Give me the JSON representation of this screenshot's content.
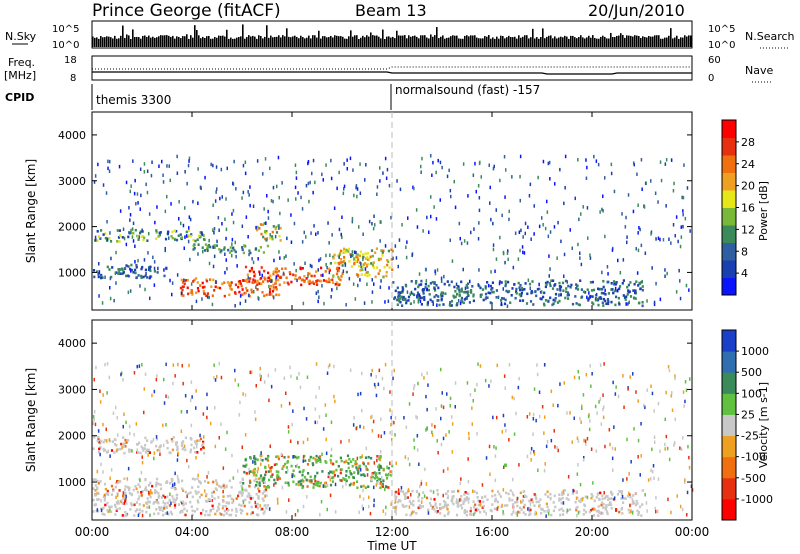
{
  "header": {
    "station": "Prince George (fitACF)",
    "beam": "Beam 13",
    "date": "20/Jun/2010"
  },
  "top_panels": {
    "nsky_label": "N.Sky",
    "nsky_ticks": [
      "10^5",
      "10^0"
    ],
    "nsearch_label": "N.Search",
    "nsearch_ticks": [
      "10^5",
      "10^0"
    ],
    "freq_label": "Freq.",
    "freq_unit": "[MHz]",
    "freq_ticks": [
      "18",
      "8"
    ],
    "nave_label": "Nave",
    "nave_ticks": [
      "60",
      "0"
    ],
    "cpid_label": "CPID",
    "cpid_segments": [
      {
        "start_hour": 0,
        "label": "themis 3300"
      },
      {
        "start_hour": 12,
        "label": "normalsound (fast) -157"
      }
    ]
  },
  "chart_data": [
    {
      "type": "heatmap",
      "title": "",
      "xlabel": "Time UT",
      "ylabel": "Slant Range [km]",
      "x_ticks": [
        "00:00",
        "04:00",
        "08:00",
        "12:00",
        "16:00",
        "20:00",
        "00:00"
      ],
      "x_range_hours": [
        0,
        24
      ],
      "ylim": [
        180,
        4500
      ],
      "y_ticks": [
        1000,
        2000,
        3000,
        4000
      ],
      "colorbar": {
        "label": "Power [dB]",
        "ticks": [
          "4",
          "8",
          "12",
          "16",
          "20",
          "24",
          "28"
        ],
        "colors": [
          "#0a14ff",
          "#1a3fb0",
          "#2f5fa0",
          "#3b8a5a",
          "#7ab83a",
          "#e6e619",
          "#f0a020",
          "#f07010",
          "#e63010",
          "#ff0000"
        ]
      },
      "regions": [
        {
          "t0": 0.0,
          "t1": 4.5,
          "r0": 1700,
          "r1": 1950,
          "level": "mid-high"
        },
        {
          "t0": 4.0,
          "t1": 7.0,
          "r0": 1450,
          "r1": 1650,
          "level": "mid"
        },
        {
          "t0": 6.5,
          "t1": 7.5,
          "r0": 1700,
          "r1": 2100,
          "level": "high"
        },
        {
          "t0": 0.0,
          "t1": 3.0,
          "r0": 900,
          "r1": 1200,
          "level": "low-mid"
        },
        {
          "t0": 3.5,
          "t1": 7.5,
          "r0": 500,
          "r1": 900,
          "level": "very-high"
        },
        {
          "t0": 6.0,
          "t1": 10.0,
          "r0": 750,
          "r1": 1150,
          "level": "very-high"
        },
        {
          "t0": 9.5,
          "t1": 12.0,
          "r0": 900,
          "r1": 1550,
          "level": "high"
        },
        {
          "t0": 12.0,
          "t1": 22.0,
          "r0": 300,
          "r1": 850,
          "level": "low-mid"
        }
      ]
    },
    {
      "type": "heatmap",
      "title": "",
      "xlabel": "Time UT",
      "ylabel": "Slant Range [km]",
      "x_ticks": [
        "00:00",
        "04:00",
        "08:00",
        "12:00",
        "16:00",
        "20:00",
        "00:00"
      ],
      "x_range_hours": [
        0,
        24
      ],
      "ylim": [
        180,
        4500
      ],
      "y_ticks": [
        1000,
        2000,
        3000,
        4000
      ],
      "colorbar": {
        "label": "Velocity [m s-1]",
        "ticks": [
          "1000",
          "500",
          "100",
          "25",
          "-25",
          "-100",
          "-500",
          "-1000"
        ],
        "colors": [
          "#1a3fc8",
          "#2f6fb0",
          "#3b8a5a",
          "#60c040",
          "#c8c8c8",
          "#f0a020",
          "#f07010",
          "#e63010",
          "#ff0000"
        ]
      },
      "regions": [
        {
          "t0": 0.0,
          "t1": 4.5,
          "r0": 1650,
          "r1": 2000,
          "level": "ground-scatter"
        },
        {
          "t0": 0.0,
          "t1": 7.0,
          "r0": 300,
          "r1": 1100,
          "level": "ground-scatter"
        },
        {
          "t0": 6.0,
          "t1": 12.0,
          "r0": 900,
          "r1": 1600,
          "level": "positive-100"
        },
        {
          "t0": 12.0,
          "t1": 22.0,
          "r0": 300,
          "r1": 850,
          "level": "ground-scatter"
        }
      ]
    }
  ]
}
